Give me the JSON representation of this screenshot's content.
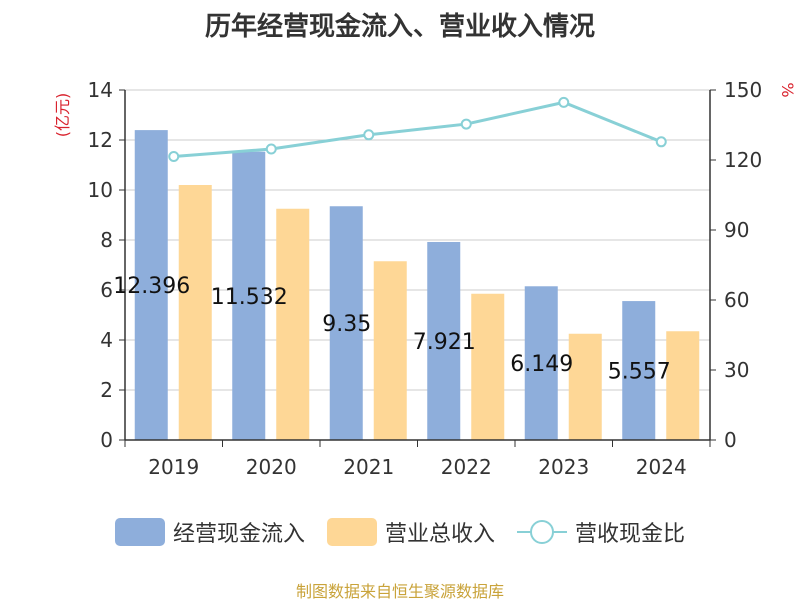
{
  "chart_data": {
    "type": "bar",
    "title": "历年经营现金流入、营业收入情况",
    "categories": [
      "2019",
      "2020",
      "2021",
      "2022",
      "2023",
      "2024"
    ],
    "series": [
      {
        "name": "经营现金流入",
        "type": "bar",
        "axis": "left",
        "color": "#8eaedb",
        "values": [
          12.396,
          11.532,
          9.35,
          7.921,
          6.149,
          5.557
        ]
      },
      {
        "name": "营业总收入",
        "type": "bar",
        "axis": "left",
        "color": "#fed796",
        "values": [
          10.2,
          9.25,
          7.15,
          5.85,
          4.25,
          4.35
        ]
      },
      {
        "name": "营收现金比",
        "type": "line",
        "axis": "right",
        "color": "#88d0d6",
        "values": [
          121.5,
          124.7,
          130.8,
          135.4,
          144.7,
          127.8
        ]
      }
    ],
    "data_labels": [
      "12.396",
      "11.532",
      "9.35",
      "7.921",
      "6.149",
      "5.557"
    ],
    "ylabel_left": "(亿元)",
    "ylabel_right": "%",
    "ylim_left": [
      0,
      14
    ],
    "yticks_left": [
      "0",
      "2",
      "4",
      "6",
      "8",
      "10",
      "12",
      "14"
    ],
    "ylim_right": [
      0,
      150
    ],
    "yticks_right": [
      "0",
      "30",
      "60",
      "90",
      "120",
      "150"
    ],
    "grid": true,
    "legend_position": "bottom"
  },
  "legend": {
    "item1": "经营现金流入",
    "item2": "营业总收入",
    "item3": "营收现金比"
  },
  "source": "制图数据来自恒生聚源数据库"
}
